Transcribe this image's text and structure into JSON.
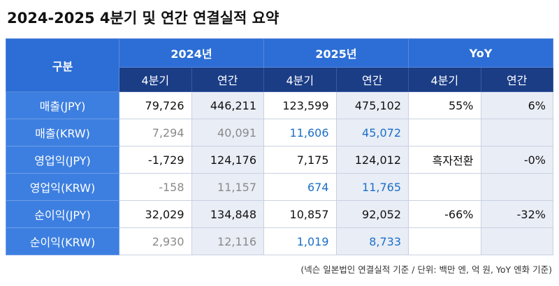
{
  "title": "2024-2025 4분기 및 연간 연결실적 요약",
  "table": {
    "corner": "구분",
    "groups": [
      "2024년",
      "2025년",
      "YoY"
    ],
    "subheaders": [
      "4분기",
      "연간",
      "4분기",
      "연간",
      "4분기",
      "연간"
    ],
    "rows": [
      [
        "매출(JPY)",
        "79,726",
        "446,211",
        "123,599",
        "475,102",
        "55%",
        "6%"
      ],
      [
        "매출(KRW)",
        "7,294",
        "40,091",
        "11,606",
        "45,072",
        null,
        null
      ],
      [
        "영업익(JPY)",
        "-1,729",
        "124,176",
        "7,175",
        "124,012",
        "흑자전환",
        "-0%"
      ],
      [
        "영업익(KRW)",
        "-158",
        "11,157",
        "674",
        "11,765",
        null,
        null
      ],
      [
        "순이익(JPY)",
        "32,029",
        "134,848",
        "10,857",
        "92,052",
        "-66%",
        "-32%"
      ],
      [
        "순이익(KRW)",
        "2,930",
        "12,116",
        "1,019",
        "8,733",
        null,
        null
      ]
    ]
  },
  "footnote": "(넥슨 일본법인 연결실적 기준 / 단위: 백만 엔, 억 원, YoY 엔화 기준)"
}
